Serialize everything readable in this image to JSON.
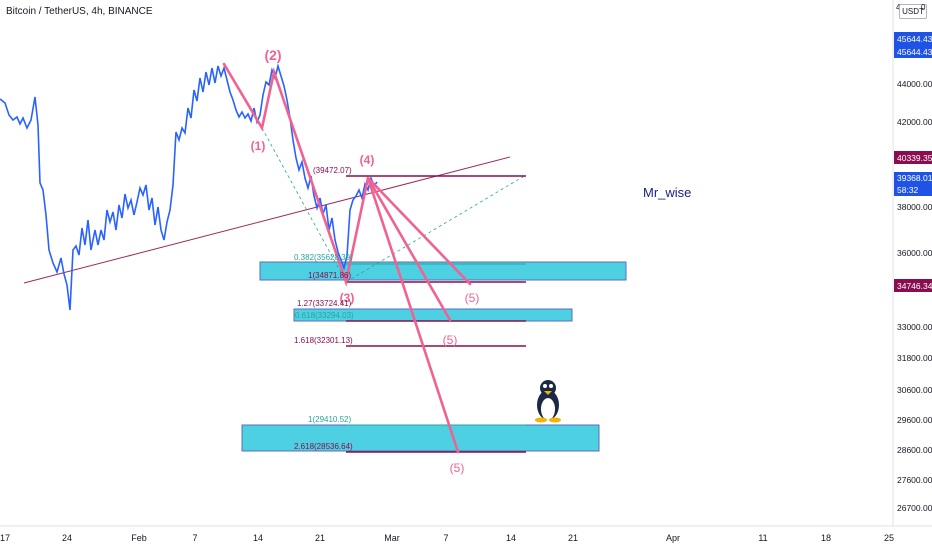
{
  "header": {
    "title": "Bitcoin / TetherUS, 4h, BINANCE",
    "currency": "USDT",
    "currency_mark": "4",
    "currency_zero": "0"
  },
  "chart_data": {
    "type": "line",
    "title": "Bitcoin / TetherUS, 4h, BINANCE",
    "xlabel": "",
    "ylabel": "",
    "x_ticks": [
      "17",
      "24",
      "Feb",
      "7",
      "14",
      "21",
      "Mar",
      "7",
      "14",
      "21",
      "Apr",
      "11",
      "18",
      "25"
    ],
    "y_ticks": [
      44000,
      42000,
      40000,
      38000,
      36000,
      33000,
      31800,
      30600,
      29600,
      28600,
      27600,
      26700
    ],
    "y_tick_labels": [
      "44000.00",
      "42000.00",
      "40000.00",
      "38000.00",
      "36000.00",
      "33000.00",
      "31800.00",
      "30600.00",
      "29600.00",
      "28600.00",
      "27600.00",
      "26700.00"
    ],
    "price_tags": [
      {
        "label": "45644.43",
        "color": "#1e53e5"
      },
      {
        "label": "45644.43",
        "color": "#1e53e5"
      },
      {
        "label": "40339.35",
        "color": "#880e4f"
      },
      {
        "label": "39368.01",
        "color": "#1e53e5"
      },
      {
        "label": "58:32",
        "color": "#1e53e5"
      },
      {
        "label": "34746.34",
        "color": "#880e4f"
      }
    ],
    "series": [
      {
        "color": "#2962ff",
        "points": [
          [
            0,
            99
          ],
          [
            5,
            103
          ],
          [
            9,
            115
          ],
          [
            13,
            120
          ],
          [
            17,
            117
          ],
          [
            20,
            124
          ],
          [
            23,
            118
          ],
          [
            27,
            128
          ],
          [
            31,
            120
          ],
          [
            35,
            97
          ],
          [
            38,
            125
          ],
          [
            40,
            183
          ],
          [
            43,
            190
          ],
          [
            46,
            215
          ],
          [
            49,
            250
          ],
          [
            53,
            263
          ],
          [
            57,
            272
          ],
          [
            61,
            258
          ],
          [
            64,
            274
          ],
          [
            67,
            285
          ],
          [
            70,
            310
          ],
          [
            73,
            250
          ],
          [
            76,
            246
          ],
          [
            79,
            255
          ],
          [
            82,
            228
          ],
          [
            85,
            245
          ],
          [
            88,
            220
          ],
          [
            91,
            250
          ],
          [
            95,
            230
          ],
          [
            98,
            245
          ],
          [
            101,
            230
          ],
          [
            104,
            240
          ],
          [
            107,
            210
          ],
          [
            110,
            222
          ],
          [
            113,
            212
          ],
          [
            116,
            230
          ],
          [
            119,
            205
          ],
          [
            122,
            218
          ],
          [
            125,
            194
          ],
          [
            128,
            208
          ],
          [
            131,
            200
          ],
          [
            134,
            215
          ],
          [
            137,
            202
          ],
          [
            140,
            188
          ],
          [
            143,
            195
          ],
          [
            146,
            185
          ],
          [
            149,
            210
          ],
          [
            152,
            198
          ],
          [
            155,
            225
          ],
          [
            158,
            207
          ],
          [
            161,
            230
          ],
          [
            164,
            240
          ],
          [
            167,
            222
          ],
          [
            170,
            210
          ],
          [
            173,
            185
          ],
          [
            176,
            132
          ],
          [
            179,
            140
          ],
          [
            182,
            128
          ],
          [
            185,
            133
          ],
          [
            188,
            108
          ],
          [
            191,
            118
          ],
          [
            194,
            90
          ],
          [
            197,
            101
          ],
          [
            200,
            78
          ],
          [
            203,
            92
          ],
          [
            206,
            72
          ],
          [
            209,
            85
          ],
          [
            212,
            68
          ],
          [
            215,
            83
          ],
          [
            218,
            66
          ],
          [
            221,
            76
          ],
          [
            224,
            68
          ],
          [
            227,
            80
          ],
          [
            230,
            92
          ],
          [
            233,
            100
          ],
          [
            236,
            110
          ],
          [
            239,
            117
          ],
          [
            242,
            112
          ],
          [
            245,
            118
          ],
          [
            248,
            114
          ],
          [
            251,
            121
          ],
          [
            254,
            108
          ],
          [
            257,
            122
          ],
          [
            260,
            115
          ],
          [
            263,
            95
          ],
          [
            266,
            82
          ],
          [
            269,
            85
          ],
          [
            272,
            70
          ],
          [
            275,
            78
          ],
          [
            278,
            66
          ],
          [
            281,
            76
          ],
          [
            284,
            86
          ],
          [
            287,
            100
          ],
          [
            290,
            118
          ],
          [
            293,
            140
          ],
          [
            296,
            158
          ],
          [
            299,
            170
          ],
          [
            302,
            162
          ],
          [
            305,
            178
          ],
          [
            308,
            188
          ],
          [
            311,
            176
          ],
          [
            314,
            196
          ],
          [
            317,
            208
          ],
          [
            320,
            198
          ],
          [
            323,
            214
          ],
          [
            326,
            205
          ],
          [
            329,
            230
          ],
          [
            332,
            218
          ],
          [
            335,
            240
          ],
          [
            338,
            252
          ],
          [
            341,
            260
          ],
          [
            344,
            268
          ],
          [
            347,
            256
          ],
          [
            350,
            210
          ],
          [
            353,
            200
          ],
          [
            356,
            196
          ],
          [
            359,
            190
          ],
          [
            362,
            198
          ],
          [
            365,
            184
          ],
          [
            368,
            190
          ],
          [
            371,
            178
          ],
          [
            374,
            186
          ],
          [
            377,
            182
          ]
        ]
      }
    ],
    "annotations": [
      {
        "text": "(2)",
        "color": "#f06292"
      },
      {
        "text": "(1)",
        "color": "#f06292"
      },
      {
        "text": "(4)",
        "color": "#f06292"
      },
      {
        "text": "(3)",
        "color": "#f06292"
      },
      {
        "text": "(5)",
        "color": "#f06292"
      },
      {
        "text": "(5)",
        "color": "#f06292"
      },
      {
        "text": "(5)",
        "color": "#f06292"
      },
      {
        "text": "(39472.07)",
        "color": "#880e4f"
      },
      {
        "text": "0.382(35628.39)",
        "color": "#26a69a"
      },
      {
        "text": "1(34871.86)",
        "color": "#880e4f"
      },
      {
        "text": "1.27(33724.41)",
        "color": "#880e4f"
      },
      {
        "text": "0.618(33294.03)",
        "color": "#26a69a"
      },
      {
        "text": "1.618(32301.13)",
        "color": "#880e4f"
      },
      {
        "text": "1(29410.52)",
        "color": "#26a69a"
      },
      {
        "text": "2.618(28536.64)",
        "color": "#880e4f"
      },
      {
        "text": "Mr_wise",
        "color": "#1a237e"
      }
    ],
    "grid": false,
    "legend": "none"
  }
}
